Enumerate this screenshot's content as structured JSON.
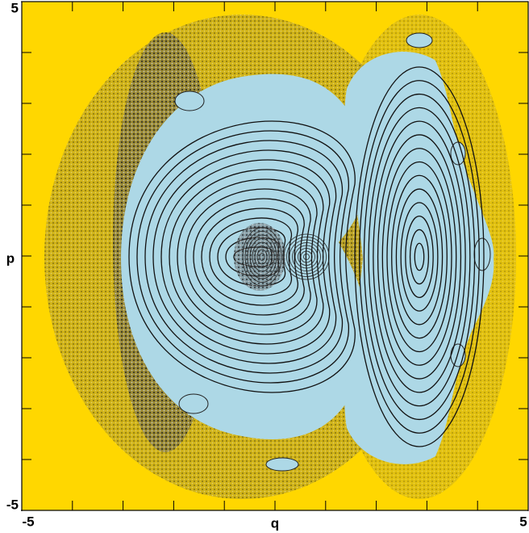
{
  "chart_data": {
    "type": "scatter",
    "x_label": "q",
    "y_label": "p",
    "xlim": [
      -5,
      5
    ],
    "ylim": [
      -5,
      5
    ],
    "xticks": [
      -5,
      5
    ],
    "yticks": [
      -5,
      5
    ],
    "xminor": [
      -4,
      -3,
      -2,
      -1,
      0,
      1,
      2,
      3,
      4
    ],
    "yminor": [
      -4,
      -3,
      -2,
      -1,
      0,
      1,
      2,
      3,
      4
    ],
    "background": "#ffd700",
    "island_color": "#add8e6"
  }
}
